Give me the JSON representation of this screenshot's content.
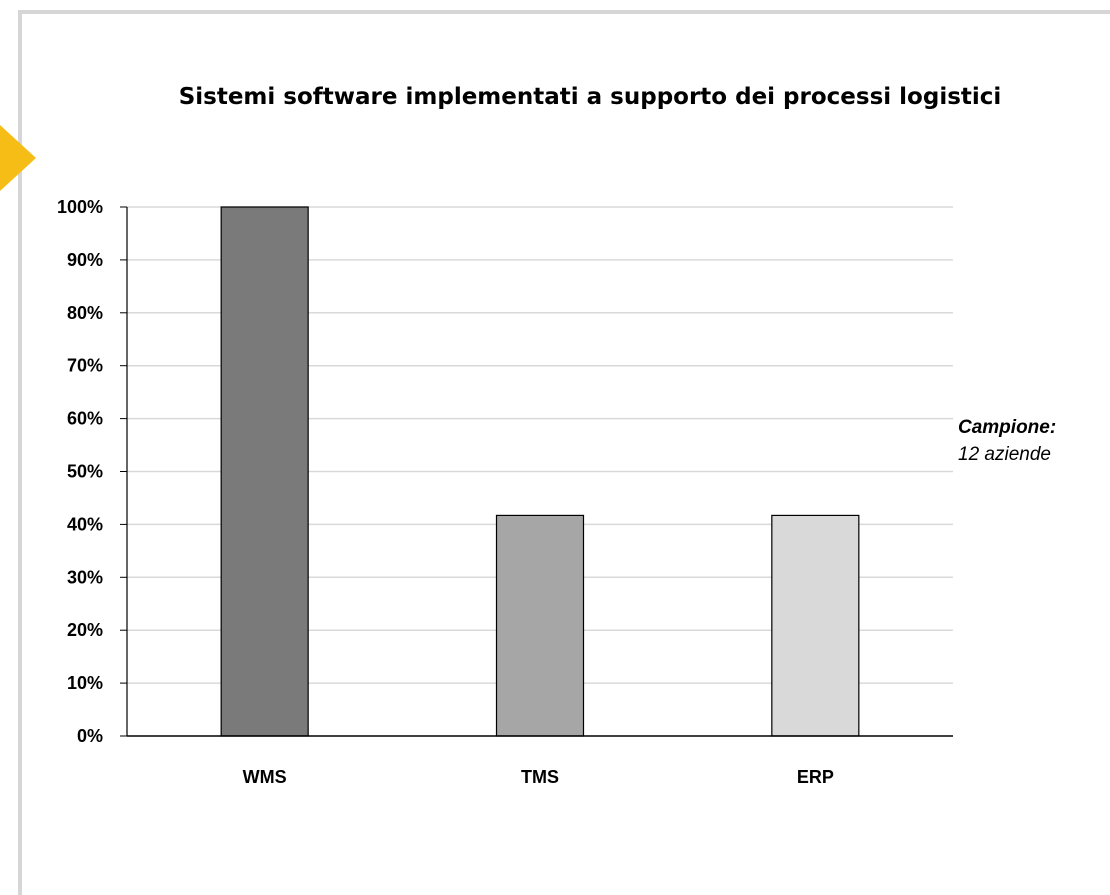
{
  "chart_data": {
    "type": "bar",
    "title": "Sistemi software implementati a supporto dei processi logistici",
    "categories": [
      "WMS",
      "TMS",
      "ERP"
    ],
    "values": [
      100,
      41.7,
      41.7
    ],
    "value_unit": "%",
    "ylim": [
      0,
      100
    ],
    "yticks": [
      "0%",
      "10%",
      "20%",
      "30%",
      "40%",
      "50%",
      "60%",
      "70%",
      "80%",
      "90%",
      "100%"
    ],
    "grid": true,
    "bar_colors": [
      "#7a7a7a",
      "#a6a6a6",
      "#d9d9d9"
    ],
    "xlabel": "",
    "ylabel": ""
  },
  "note": {
    "label": "Campione:",
    "text": "12 aziende"
  },
  "colors": {
    "accent": "#f5bd16",
    "frame": "#d6d6d6",
    "gridline": "#d9d9d9"
  }
}
